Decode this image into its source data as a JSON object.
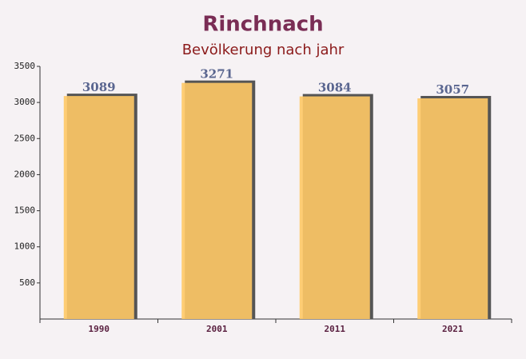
{
  "chart_data": {
    "type": "bar",
    "title": "Rinchnach",
    "subtitle": "Bevölkerung nach jahr",
    "categories": [
      "1990",
      "2001",
      "2011",
      "2021"
    ],
    "values": [
      3089,
      3271,
      3084,
      3057
    ],
    "color": "#ffc966",
    "ylim": [
      0,
      3500
    ],
    "yticks": [
      500,
      1000,
      1500,
      2000,
      2500,
      3000,
      3500
    ]
  }
}
